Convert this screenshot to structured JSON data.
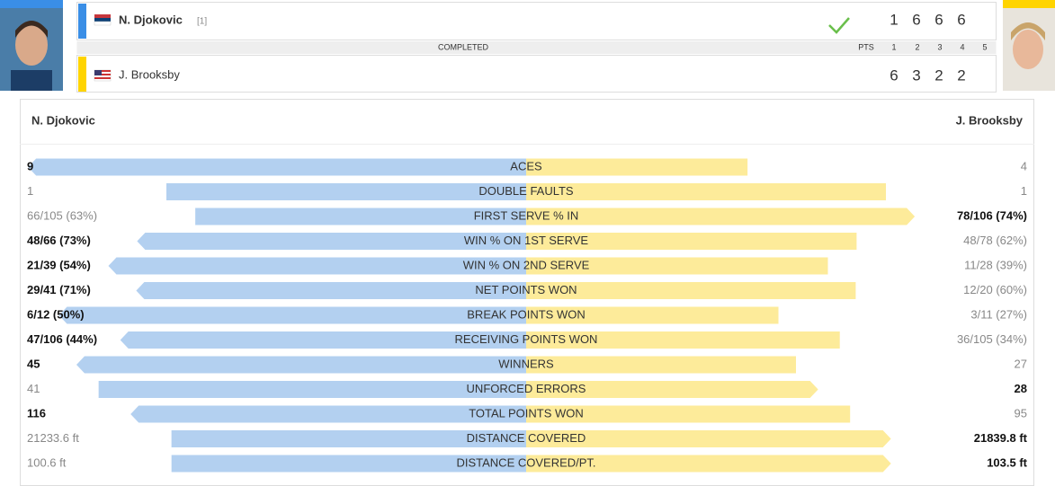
{
  "match": {
    "status": "COMPLETED",
    "column_headers": [
      "PTS",
      "1",
      "2",
      "3",
      "4",
      "5"
    ],
    "players": [
      {
        "name": "N. Djokovic",
        "seed": "[1]",
        "sets": [
          "1",
          "6",
          "6",
          "6"
        ],
        "winner": true
      },
      {
        "name": "J. Brooksby",
        "sets": [
          "6",
          "3",
          "2",
          "2"
        ],
        "winner": false
      }
    ]
  },
  "stats": {
    "left_header": "N. Djokovic",
    "right_header": "J. Brooksby",
    "rows": [
      {
        "label": "ACES",
        "left": "9",
        "right": "4",
        "left_value": 9,
        "right_value": 4,
        "leader": "left"
      },
      {
        "label": "DOUBLE FAULTS",
        "left": "1",
        "right": "1",
        "left_value": 1,
        "right_value": 1,
        "leader": "none"
      },
      {
        "label": "FIRST SERVE % IN",
        "left": "66/105 (63%)",
        "right": "78/106 (74%)",
        "left_value": 63,
        "right_value": 74,
        "leader": "right"
      },
      {
        "label": "WIN % ON 1ST SERVE",
        "left": "48/66 (73%)",
        "right": "48/78 (62%)",
        "left_value": 73,
        "right_value": 62,
        "leader": "left"
      },
      {
        "label": "WIN % ON 2ND SERVE",
        "left": "21/39 (54%)",
        "right": "11/28 (39%)",
        "left_value": 54,
        "right_value": 39,
        "leader": "left"
      },
      {
        "label": "NET POINTS WON",
        "left": "29/41 (71%)",
        "right": "12/20 (60%)",
        "left_value": 71,
        "right_value": 60,
        "leader": "left"
      },
      {
        "label": "BREAK POINTS WON",
        "left": "6/12 (50%)",
        "right": "3/11 (27%)",
        "left_value": 50,
        "right_value": 27,
        "leader": "left"
      },
      {
        "label": "RECEIVING POINTS WON",
        "left": "47/106 (44%)",
        "right": "36/105 (34%)",
        "left_value": 44,
        "right_value": 34,
        "leader": "left"
      },
      {
        "label": "WINNERS",
        "left": "45",
        "right": "27",
        "left_value": 45,
        "right_value": 27,
        "leader": "left"
      },
      {
        "label": "UNFORCED ERRORS",
        "left": "41",
        "right": "28",
        "left_value": 41,
        "right_value": 28,
        "leader": "right"
      },
      {
        "label": "TOTAL POINTS WON",
        "left": "116",
        "right": "95",
        "left_value": 116,
        "right_value": 95,
        "leader": "left"
      },
      {
        "label": "DISTANCE COVERED",
        "left": "21233.6 ft",
        "right": "21839.8 ft",
        "left_value": 21233.6,
        "right_value": 21839.8,
        "leader": "right"
      },
      {
        "label": "DISTANCE COVERED/PT.",
        "left": "100.6 ft",
        "right": "103.5 ft",
        "left_value": 100.6,
        "right_value": 103.5,
        "leader": "right"
      }
    ]
  }
}
